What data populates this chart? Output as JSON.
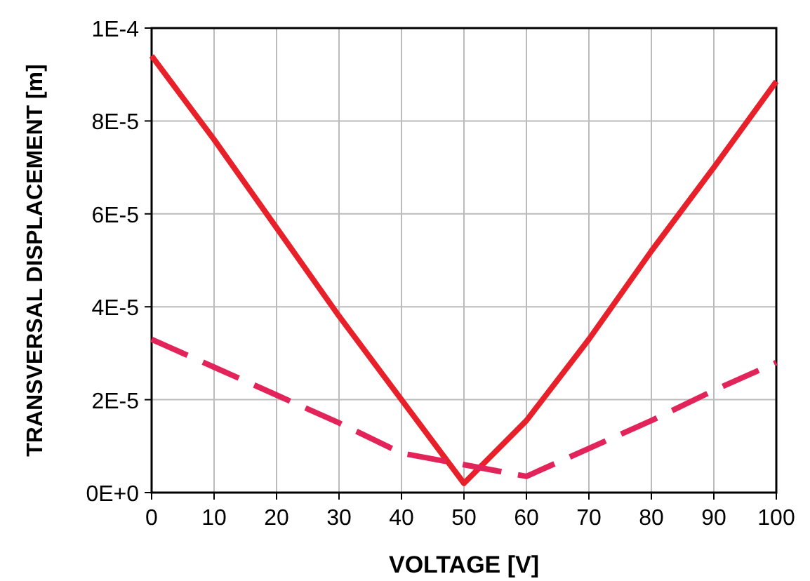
{
  "chart_data": {
    "type": "line",
    "xlabel": "VOLTAGE [V]",
    "ylabel": "TRANSVERSAL DISPLACEMENT [m]",
    "x": [
      0,
      10,
      20,
      30,
      40,
      50,
      60,
      70,
      80,
      90,
      100
    ],
    "series": [
      {
        "color": "#e8202a",
        "line_style": "solid",
        "values": [
          9.4e-05,
          7.6e-05,
          5.7e-05,
          3.8e-05,
          2e-05,
          2e-06,
          1.55e-05,
          3.3e-05,
          5.2e-05,
          7e-05,
          8.85e-05
        ]
      },
      {
        "color": "#e2245a",
        "line_style": "dashed",
        "values": [
          3.3e-05,
          2.7e-05,
          2.1e-05,
          1.5e-05,
          8.5e-06,
          6e-06,
          3.5e-06,
          9.5e-06,
          1.55e-05,
          2.2e-05,
          2.8e-05
        ]
      }
    ],
    "xlim": [
      0,
      100
    ],
    "xticks": [
      0,
      10,
      20,
      30,
      40,
      50,
      60,
      70,
      80,
      90,
      100
    ],
    "ylim": [
      0,
      0.0001
    ],
    "yticks": [
      {
        "value": 0,
        "label": "0E+0"
      },
      {
        "value": 2e-05,
        "label": "2E-5"
      },
      {
        "value": 4e-05,
        "label": "4E-5"
      },
      {
        "value": 6e-05,
        "label": "6E-5"
      },
      {
        "value": 8e-05,
        "label": "8E-5"
      },
      {
        "value": 0.0001,
        "label": "1E-4"
      }
    ],
    "grid": true,
    "marker": "none"
  }
}
